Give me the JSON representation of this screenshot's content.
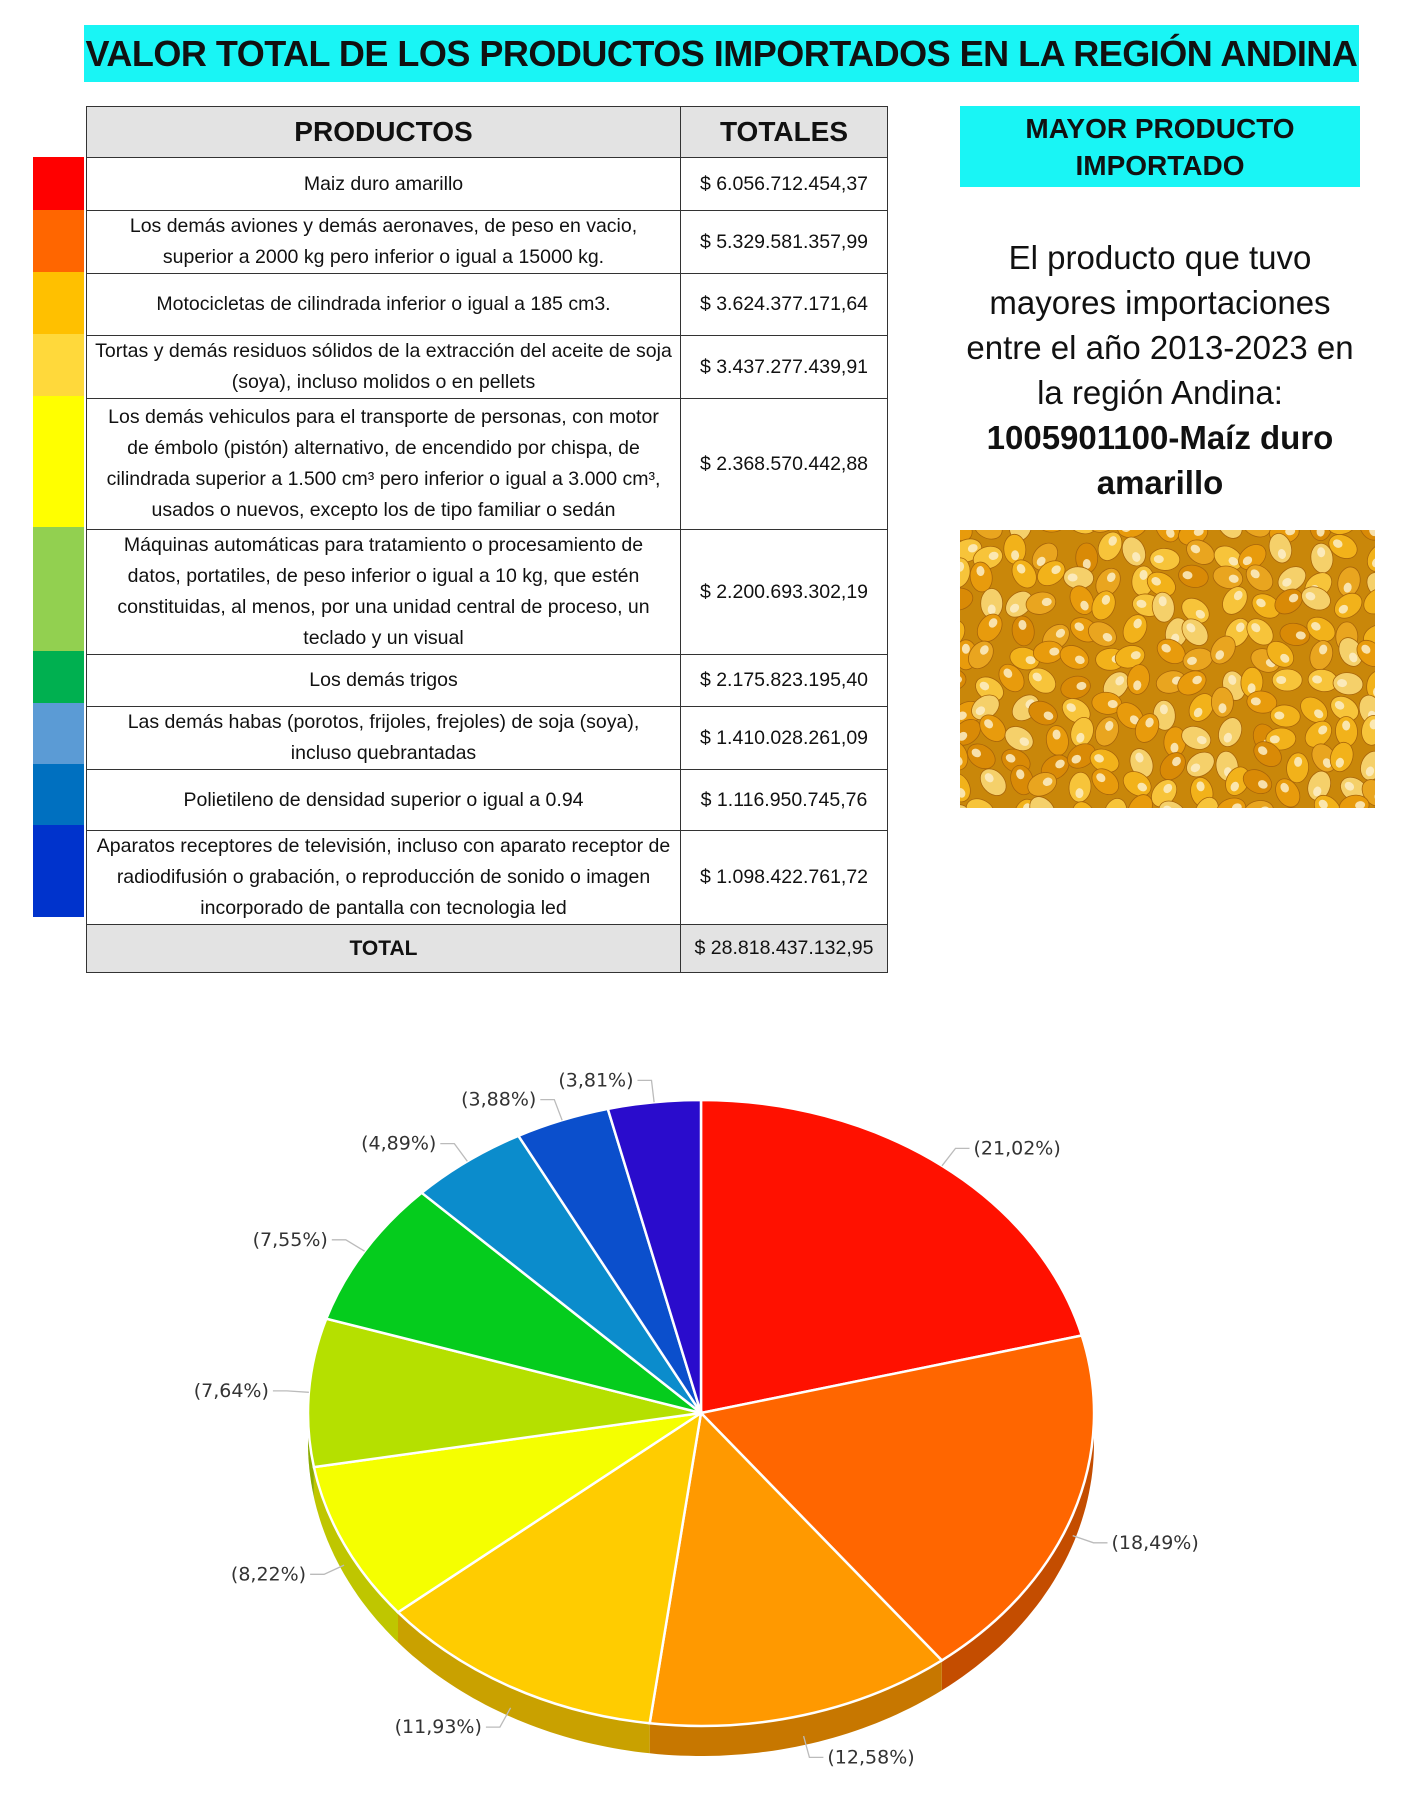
{
  "title": "VALOR TOTAL DE LOS PRODUCTOS IMPORTADOS EN LA REGIÓN ANDINA",
  "table": {
    "header_products": "PRODUCTOS",
    "header_totals": "TOTALES",
    "rows": [
      {
        "product": "Maiz duro amarillo",
        "total": "$ 6.056.712.454,37",
        "color": "#ff0000"
      },
      {
        "product": "Los demás aviones y demás aeronaves, de peso en vacio, superior a 2000 kg pero inferior o igual a 15000 kg.",
        "total": "$ 5.329.581.357,99",
        "color": "#ff6600"
      },
      {
        "product": "Motocicletas de cilindrada inferior o igual a 185 cm3.",
        "total": "$ 3.624.377.171,64",
        "color": "#ffc000"
      },
      {
        "product": "Tortas y demás residuos sólidos de la extracción del aceite de soja (soya), incluso molidos o en pellets",
        "total": "$ 3.437.277.439,91",
        "color": "#ffd93b"
      },
      {
        "product": "Los demás vehiculos para el transporte de personas, con motor de émbolo (pistón) alternativo, de encendido por chispa, de cilindrada superior a 1.500 cm³ pero inferior o igual a 3.000 cm³, usados o nuevos, excepto los de tipo familiar o sedán",
        "total": "$ 2.368.570.442,88",
        "color": "#ffff00"
      },
      {
        "product": "Máquinas automáticas para tratamiento o procesamiento de datos, portatiles, de peso inferior o igual a 10 kg, que estén constituidas, al menos, por una unidad central de proceso, un teclado y un visual",
        "total": "$ 2.200.693.302,19",
        "color": "#92d050"
      },
      {
        "product": "Los demás trigos",
        "total": "$ 2.175.823.195,40",
        "color": "#00b050"
      },
      {
        "product": "Las demás habas (porotos, frijoles, frejoles) de soja (soya), incluso quebrantadas",
        "total": "$ 1.410.028.261,09",
        "color": "#5b9bd5"
      },
      {
        "product": "Polietileno de densidad superior o igual a 0.94",
        "total": "$ 1.116.950.745,76",
        "color": "#0070c0"
      },
      {
        "product": "Aparatos receptores de televisión, incluso con aparato receptor de radiodifusión o grabación, o reproducción de sonido o imagen incorporado de pantalla con tecnologia led",
        "total": "$ 1.098.422.761,72",
        "color": "#0033cc"
      }
    ],
    "total_label": "TOTAL",
    "total_value": "$ 28.818.437.132,95"
  },
  "side": {
    "header": "MAYOR PRODUCTO IMPORTADO",
    "text": "El producto que tuvo mayores importaciones entre el año 2013-2023 en la región Andina:",
    "highlight": "1005901100-Maíz duro amarillo"
  },
  "chart_data": {
    "type": "pie",
    "slices": [
      {
        "value": 21.02,
        "label": "(21,02%)",
        "color": "#ff1100",
        "side": "#c40d00"
      },
      {
        "value": 18.49,
        "label": "(18,49%)",
        "color": "#ff6600",
        "side": "#c44d00"
      },
      {
        "value": 12.58,
        "label": "(12,58%)",
        "color": "#ff9900",
        "side": "#c77700"
      },
      {
        "value": 11.93,
        "label": "(11,93%)",
        "color": "#ffcc00",
        "side": "#c9a100"
      },
      {
        "value": 8.22,
        "label": "(8,22%)",
        "color": "#f5ff00",
        "side": "#bfc600"
      },
      {
        "value": 7.64,
        "label": "(7,64%)",
        "color": "#b5e000",
        "side": "#8aab00"
      },
      {
        "value": 7.55,
        "label": "(7,55%)",
        "color": "#05cc1d",
        "side": "#049c16"
      },
      {
        "value": 4.89,
        "label": "(4,89%)",
        "color": "#0b8ccc",
        "side": "#086b9c"
      },
      {
        "value": 3.88,
        "label": "(3,88%)",
        "color": "#0b4fcc",
        "side": "#083c9c"
      },
      {
        "value": 3.81,
        "label": "(3,81%)",
        "color": "#2a0ccc",
        "side": "#20099c"
      }
    ]
  }
}
